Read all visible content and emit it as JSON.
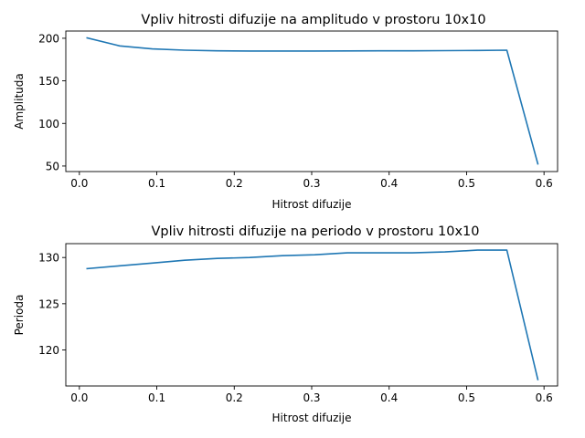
{
  "chart_data": [
    {
      "type": "line",
      "title": "Vpliv hitrosti difuzije na amplitudo v prostoru 10x10",
      "xlabel": "Hitrost difuzije",
      "ylabel": "Amplituda",
      "xlim": [
        -0.0175,
        0.6175
      ],
      "ylim": [
        43.5,
        208.5
      ],
      "xticks": [
        0.0,
        0.1,
        0.2,
        0.3,
        0.4,
        0.5,
        0.6
      ],
      "xtick_labels": [
        "0.0",
        "0.1",
        "0.2",
        "0.3",
        "0.4",
        "0.5",
        "0.6"
      ],
      "yticks": [
        50,
        100,
        150,
        200
      ],
      "ytick_labels": [
        "50",
        "100",
        "150",
        "200"
      ],
      "grid": false,
      "series": [
        {
          "color": "#1f77b4",
          "x": [
            0.01,
            0.052,
            0.094,
            0.136,
            0.178,
            0.22,
            0.262,
            0.304,
            0.346,
            0.388,
            0.43,
            0.472,
            0.514,
            0.552,
            0.592
          ],
          "y": [
            200.5,
            191.0,
            187.5,
            186.0,
            185.3,
            185.0,
            185.0,
            185.0,
            185.1,
            185.2,
            185.3,
            185.5,
            185.7,
            186.0,
            52.5
          ]
        }
      ]
    },
    {
      "type": "line",
      "title": "Vpliv hitrosti difuzije na periodo v prostoru 10x10",
      "xlabel": "Hitrost difuzije",
      "ylabel": "Perioda",
      "xlim": [
        -0.0175,
        0.6175
      ],
      "ylim": [
        116.1,
        131.5
      ],
      "xticks": [
        0.0,
        0.1,
        0.2,
        0.3,
        0.4,
        0.5,
        0.6
      ],
      "xtick_labels": [
        "0.0",
        "0.1",
        "0.2",
        "0.3",
        "0.4",
        "0.5",
        "0.6"
      ],
      "yticks": [
        120,
        125,
        130
      ],
      "ytick_labels": [
        "120",
        "125",
        "130"
      ],
      "grid": false,
      "series": [
        {
          "color": "#1f77b4",
          "x": [
            0.01,
            0.052,
            0.094,
            0.136,
            0.178,
            0.22,
            0.262,
            0.304,
            0.346,
            0.388,
            0.43,
            0.472,
            0.514,
            0.552,
            0.592
          ],
          "y": [
            128.8,
            129.1,
            129.4,
            129.7,
            129.9,
            130.0,
            130.2,
            130.3,
            130.5,
            130.5,
            130.5,
            130.6,
            130.8,
            130.8,
            116.8
          ]
        }
      ]
    }
  ]
}
